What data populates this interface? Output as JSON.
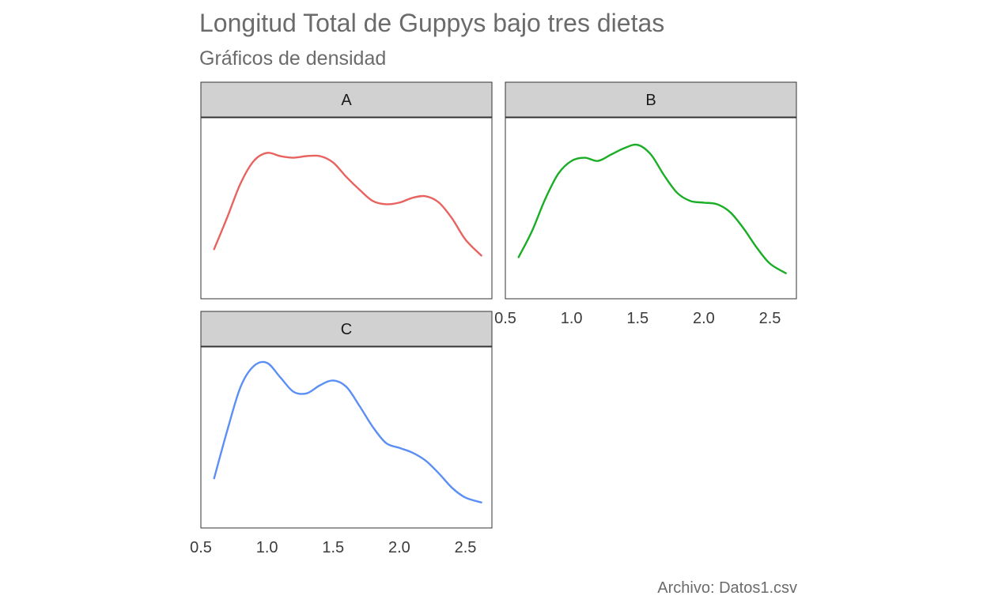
{
  "chart_data": {
    "type": "line",
    "title": "Longitud Total de Guppys bajo tres dietas",
    "subtitle": "Gráficos de densidad",
    "caption": "Archivo: Datos1.csv",
    "xlabel": "",
    "ylabel": "",
    "xlim": [
      0.5,
      2.7
    ],
    "ylim": [
      0,
      1
    ],
    "xticks": [
      0.5,
      1.0,
      1.5,
      2.0,
      2.5
    ],
    "xtick_labels": [
      "0.5",
      "1.0",
      "1.5",
      "2.0",
      "2.5"
    ],
    "grid": false,
    "legend": "none",
    "panels": [
      {
        "name": "A",
        "color": "#e8635f",
        "x": [
          0.6,
          0.7,
          0.8,
          0.9,
          1.0,
          1.1,
          1.2,
          1.3,
          1.4,
          1.5,
          1.6,
          1.7,
          1.8,
          1.9,
          2.0,
          2.1,
          2.2,
          2.3,
          2.4,
          2.5,
          2.62
        ],
        "y": [
          0.25,
          0.45,
          0.66,
          0.8,
          0.85,
          0.83,
          0.82,
          0.83,
          0.83,
          0.79,
          0.7,
          0.62,
          0.55,
          0.53,
          0.54,
          0.57,
          0.58,
          0.54,
          0.44,
          0.31,
          0.21
        ]
      },
      {
        "name": "B",
        "color": "#1aad26",
        "x": [
          0.6,
          0.7,
          0.8,
          0.9,
          1.0,
          1.1,
          1.2,
          1.3,
          1.4,
          1.5,
          1.6,
          1.7,
          1.8,
          1.9,
          2.0,
          2.1,
          2.2,
          2.3,
          2.4,
          2.5,
          2.62
        ],
        "y": [
          0.2,
          0.36,
          0.56,
          0.72,
          0.8,
          0.82,
          0.8,
          0.84,
          0.88,
          0.9,
          0.84,
          0.71,
          0.6,
          0.55,
          0.54,
          0.53,
          0.48,
          0.38,
          0.26,
          0.16,
          0.1
        ]
      },
      {
        "name": "C",
        "color": "#5b8ff5",
        "x": [
          0.6,
          0.7,
          0.8,
          0.9,
          1.0,
          1.1,
          1.2,
          1.3,
          1.4,
          1.5,
          1.6,
          1.7,
          1.8,
          1.9,
          2.0,
          2.1,
          2.2,
          2.3,
          2.4,
          2.5,
          2.62
        ],
        "y": [
          0.25,
          0.55,
          0.82,
          0.95,
          0.97,
          0.88,
          0.79,
          0.78,
          0.83,
          0.86,
          0.82,
          0.7,
          0.57,
          0.47,
          0.44,
          0.41,
          0.36,
          0.28,
          0.19,
          0.13,
          0.1
        ]
      }
    ]
  }
}
